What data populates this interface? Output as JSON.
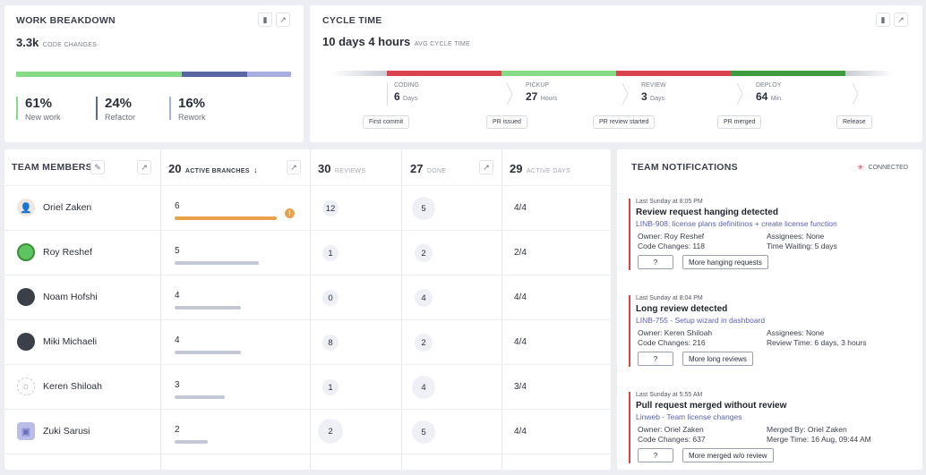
{
  "work_breakdown": {
    "title": "WORK BREAKDOWN",
    "value": "3.3k",
    "value_label": "CODE CHANGES",
    "stats": [
      {
        "pct": "61%",
        "label": "New work",
        "color": "#86dc86",
        "fraction": 0.61
      },
      {
        "pct": "24%",
        "label": "Refactor",
        "color": "#5a67a5",
        "fraction": 0.24
      },
      {
        "pct": "16%",
        "label": "Rework",
        "color": "#a8aee0",
        "fraction": 0.16
      }
    ]
  },
  "cycle_time": {
    "title": "CYCLE TIME",
    "value": "10 days 4 hours",
    "value_label": "AVG CYCLE TIME",
    "stages": [
      {
        "name": "CODING",
        "value": "6",
        "unit": "Days",
        "color": "#d9434f"
      },
      {
        "name": "PICKUP",
        "value": "27",
        "unit": "Hours",
        "color": "#86dc86"
      },
      {
        "name": "REVIEW",
        "value": "3",
        "unit": "Days",
        "color": "#d9434f"
      },
      {
        "name": "DEPLOY",
        "value": "64",
        "unit": "Min.",
        "color": "#3e9b3e"
      }
    ],
    "milestones": [
      "First commit",
      "PR issued",
      "PR review started",
      "PR merged",
      "Release"
    ]
  },
  "team": {
    "title": "TEAM MEMBERS",
    "headers": {
      "branches_count": "20",
      "branches_label": "ACTIVE BRANCHES",
      "reviews_count": "30",
      "reviews_label": "REVIEWS",
      "done_count": "27",
      "done_label": "DONE",
      "days_count": "29",
      "days_label": "ACTIVE DAYS"
    },
    "members": [
      {
        "name": "Oriel Zaken",
        "branches": "6",
        "bar_fraction": 0.95,
        "bar_color": "#e8a24a",
        "warn": "!",
        "reviews": "12",
        "done": "5",
        "days": "4/4",
        "avatar": "person-avatar"
      },
      {
        "name": "Roy Reshef",
        "branches": "5",
        "bar_fraction": 0.78,
        "bar_color": "#c4c7d5",
        "reviews": "1",
        "done": "2",
        "days": "2/4",
        "avatar": "frog-avatar"
      },
      {
        "name": "Noam Hofshi",
        "branches": "4",
        "bar_fraction": 0.62,
        "bar_color": "#c4c7d5",
        "reviews": "0",
        "done": "4",
        "days": "4/4",
        "avatar": "photo-avatar"
      },
      {
        "name": "Miki Michaeli",
        "branches": "4",
        "bar_fraction": 0.62,
        "bar_color": "#c4c7d5",
        "reviews": "8",
        "done": "2",
        "days": "4/4",
        "avatar": "photo-avatar"
      },
      {
        "name": "Keren Shiloah",
        "branches": "3",
        "bar_fraction": 0.47,
        "bar_color": "#c4c7d5",
        "reviews": "1",
        "done": "4",
        "days": "3/4",
        "avatar": "sun-avatar"
      },
      {
        "name": "Zuki Sarusi",
        "branches": "2",
        "bar_fraction": 0.31,
        "bar_color": "#c4c7d5",
        "reviews": "2",
        "done": "5",
        "days": "4/4",
        "avatar": "robot-avatar"
      }
    ]
  },
  "notifications": {
    "title": "TEAM NOTIFICATIONS",
    "status": "CONNECTED",
    "items": [
      {
        "time": "Last Sunday at 8:05 PM",
        "title": "Review request hanging detected",
        "link": "LINB-908: license plans definitinos + create license function",
        "left1": "Owner: Roy Reshef",
        "right1": "Assignees: None",
        "left2": "Code Changes: 118",
        "right2": "Time Waiting: 5 days",
        "btn_q": "?",
        "btn_more": "More hanging requests"
      },
      {
        "time": "Last Sunday at 8:04 PM",
        "title": "Long review detected",
        "link": "LINB-755 - Setup wizard in dashboard",
        "left1": "Owner: Keren Shiloah",
        "right1": "Assignees: None",
        "left2": "Code Changes: 216",
        "right2": "Review Time: 6 days, 3 hours",
        "btn_q": "?",
        "btn_more": "More long reviews"
      },
      {
        "time": "Last Sunday at 5:55 AM",
        "title": "Pull request merged without review",
        "link": "Linweb - Team license changes",
        "left1": "Owner: Oriel Zaken",
        "right1": "Merged By: Oriel Zaken",
        "left2": "Code Changes: 637",
        "right2": "Merge Time: 16 Aug, 09:44 AM",
        "btn_q": "?",
        "btn_more": "More merged w/o review"
      }
    ]
  }
}
